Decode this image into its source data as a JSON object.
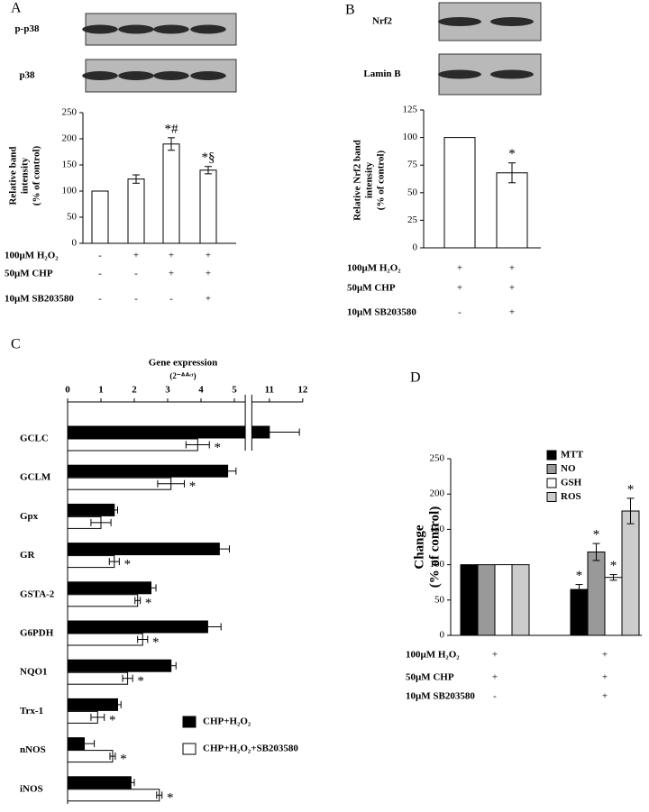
{
  "chart_data": [
    {
      "panel": "A",
      "type": "bar",
      "blots": [
        "p-p38",
        "p38"
      ],
      "ylabel": [
        "Relative band",
        "intensity",
        "(% of control)"
      ],
      "ylim": [
        0,
        250
      ],
      "yticks": [
        0,
        50,
        100,
        150,
        200,
        250
      ],
      "series": [
        {
          "color": "#ffffff",
          "values": [
            100,
            123,
            190,
            140
          ],
          "errors": [
            null,
            8,
            12,
            7
          ],
          "annotations": [
            null,
            null,
            "*#",
            "*§"
          ]
        }
      ],
      "treatments": [
        {
          "label": "100μM H₂O₂",
          "signs": [
            "-",
            "+",
            "+",
            "+"
          ]
        },
        {
          "label": "50μM CHP",
          "signs": [
            "-",
            "-",
            "+",
            "+"
          ]
        },
        {
          "label": "10μM SB203580",
          "signs": [
            "-",
            "-",
            "-",
            "+"
          ]
        }
      ]
    },
    {
      "panel": "B",
      "type": "bar",
      "blots": [
        "Nrf2",
        "Lamin B"
      ],
      "ylabel": [
        "Relative Nrf2 band",
        "intensity",
        "(% of control)"
      ],
      "ylim": [
        0,
        125
      ],
      "yticks": [
        0,
        25,
        50,
        75,
        100,
        125
      ],
      "series": [
        {
          "color": "#ffffff",
          "values": [
            100,
            68
          ],
          "errors": [
            null,
            9
          ],
          "annotations": [
            null,
            "*"
          ]
        }
      ],
      "treatments": [
        {
          "label": "100μM H₂O₂",
          "signs": [
            "+",
            "+"
          ]
        },
        {
          "label": "50μM CHP",
          "signs": [
            "+",
            "+"
          ]
        },
        {
          "label": "10μM SB203580",
          "signs": [
            "-",
            "+"
          ]
        }
      ]
    },
    {
      "panel": "C",
      "type": "hbar",
      "title": "Gene expression",
      "subtitle": "(2⁻ᐞᐞᶜᵗ)",
      "xlim": [
        0,
        12
      ],
      "xticks": [
        0,
        1,
        2,
        3,
        4,
        5,
        11,
        12
      ],
      "axis_break": [
        5.3,
        10.5
      ],
      "categories": [
        "GCLC",
        "GCLM",
        "Gpx",
        "GR",
        "GSTA-2",
        "G6PDH",
        "NQO1",
        "Trx-1",
        "nNOS",
        "iNOS"
      ],
      "series": [
        {
          "name": "CHP+H₂O₂",
          "color": "#000000",
          "values": [
            11,
            4.8,
            1.4,
            4.55,
            2.5,
            4.2,
            3.1,
            1.5,
            0.5,
            1.9
          ],
          "errors": [
            0.9,
            0.25,
            0.1,
            0.3,
            0.15,
            0.4,
            0.15,
            0.1,
            0.3,
            0.1
          ]
        },
        {
          "name": "CHP+H₂O₂+SB203580",
          "color": "#ffffff",
          "values": [
            3.9,
            3.1,
            1.0,
            1.4,
            2.1,
            2.25,
            1.8,
            0.9,
            1.35,
            2.75
          ],
          "errors": [
            0.35,
            0.4,
            0.3,
            0.15,
            0.08,
            0.15,
            0.15,
            0.2,
            0.08,
            0.08
          ],
          "annotations": [
            "*",
            "*",
            null,
            "*",
            "*",
            "*",
            "*",
            "*",
            "*",
            "*"
          ]
        }
      ]
    },
    {
      "panel": "D",
      "type": "bar",
      "ylabel": [
        "Change",
        "(% of control)"
      ],
      "ylim": [
        0,
        250
      ],
      "yticks": [
        0,
        50,
        100,
        150,
        200,
        250
      ],
      "series": [
        {
          "name": "MTT",
          "color": "#000000",
          "values": [
            100,
            65
          ],
          "errors": [
            null,
            7
          ],
          "annotations": [
            null,
            "*"
          ]
        },
        {
          "name": "NO",
          "color": "#999999",
          "values": [
            100,
            118
          ],
          "errors": [
            null,
            12
          ],
          "annotations": [
            null,
            "*"
          ]
        },
        {
          "name": "GSH",
          "color": "#ffffff",
          "values": [
            100,
            82
          ],
          "errors": [
            null,
            4
          ],
          "annotations": [
            null,
            "*"
          ]
        },
        {
          "name": "ROS",
          "color": "#cccccc",
          "values": [
            100,
            176
          ],
          "errors": [
            null,
            18
          ],
          "annotations": [
            null,
            "*"
          ]
        }
      ],
      "treatments": [
        {
          "label": "100μM H₂O₂",
          "signs": [
            "+",
            "+"
          ]
        },
        {
          "label": "50μM CHP",
          "signs": [
            "+",
            "+"
          ]
        },
        {
          "label": "10μM SB203580",
          "signs": [
            "-",
            "+"
          ]
        }
      ]
    }
  ]
}
